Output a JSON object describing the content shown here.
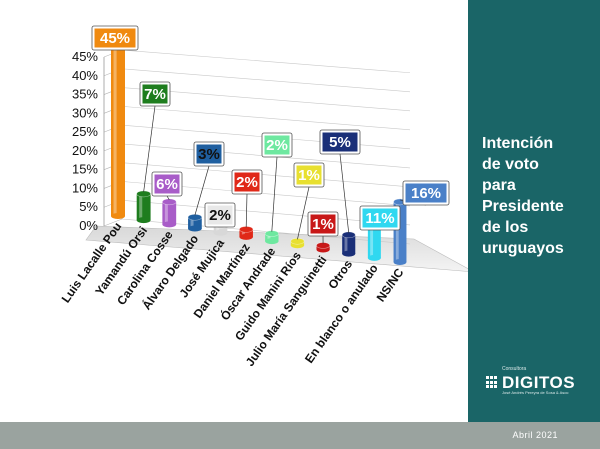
{
  "chart_data": {
    "type": "bar",
    "categories": [
      "Luis Lacalle Pou",
      "Yamandú Orsi",
      "Carolina Cosse",
      "Álvaro Delgado",
      "José Mujica",
      "Daniel Martínez",
      "Óscar Andrade",
      "Guido Manini Ríos",
      "Julio María Sanguinetti",
      "Otros",
      "En blanco o anulado",
      "NS/NC"
    ],
    "values": [
      45,
      7,
      6,
      3,
      2,
      2,
      2,
      1,
      1,
      5,
      11,
      16
    ],
    "data_labels": [
      "45%",
      "7%",
      "6%",
      "3%",
      "2%",
      "2%",
      "2%",
      "1%",
      "1%",
      "5%",
      "11%",
      "16%"
    ],
    "y_ticks": [
      "0%",
      "5%",
      "10%",
      "15%",
      "20%",
      "25%",
      "30%",
      "35%",
      "40%",
      "45%"
    ],
    "ylim": [
      0,
      45
    ],
    "grid": true,
    "colors": [
      "#f08a10",
      "#1e7d1e",
      "#a85cc8",
      "#1f5fa0",
      "#d8d8d8",
      "#e02818",
      "#6ee8a0",
      "#e8e030",
      "#c81818",
      "#1a2f78",
      "#30d8f0",
      "#4a80c8"
    ],
    "label_box_colors": [
      "#f08a10",
      "#1e7d1e",
      "#a85cc8",
      "#1f5fa0",
      "#e8e8e8",
      "#e02818",
      "#6ee8a0",
      "#e8e030",
      "#c81818",
      "#1a2f78",
      "#30d8f0",
      "#4a80c8"
    ],
    "label_text_colors": [
      "#ffffff",
      "#ffffff",
      "#ffffff",
      "#111111",
      "#111111",
      "#ffffff",
      "#ffffff",
      "#ffffff",
      "#ffffff",
      "#ffffff",
      "#ffffff",
      "#ffffff"
    ]
  },
  "panel": {
    "title": "Intención\nde voto\npara\nPresidente\nde los\nuruguayos",
    "background": "#1a6567"
  },
  "logo": {
    "small": "Consultora",
    "main": "DIGITOS",
    "sub": "José Andrés Pereyra de Sosa & Asoc"
  },
  "footer": {
    "date": "Abril 2021"
  }
}
